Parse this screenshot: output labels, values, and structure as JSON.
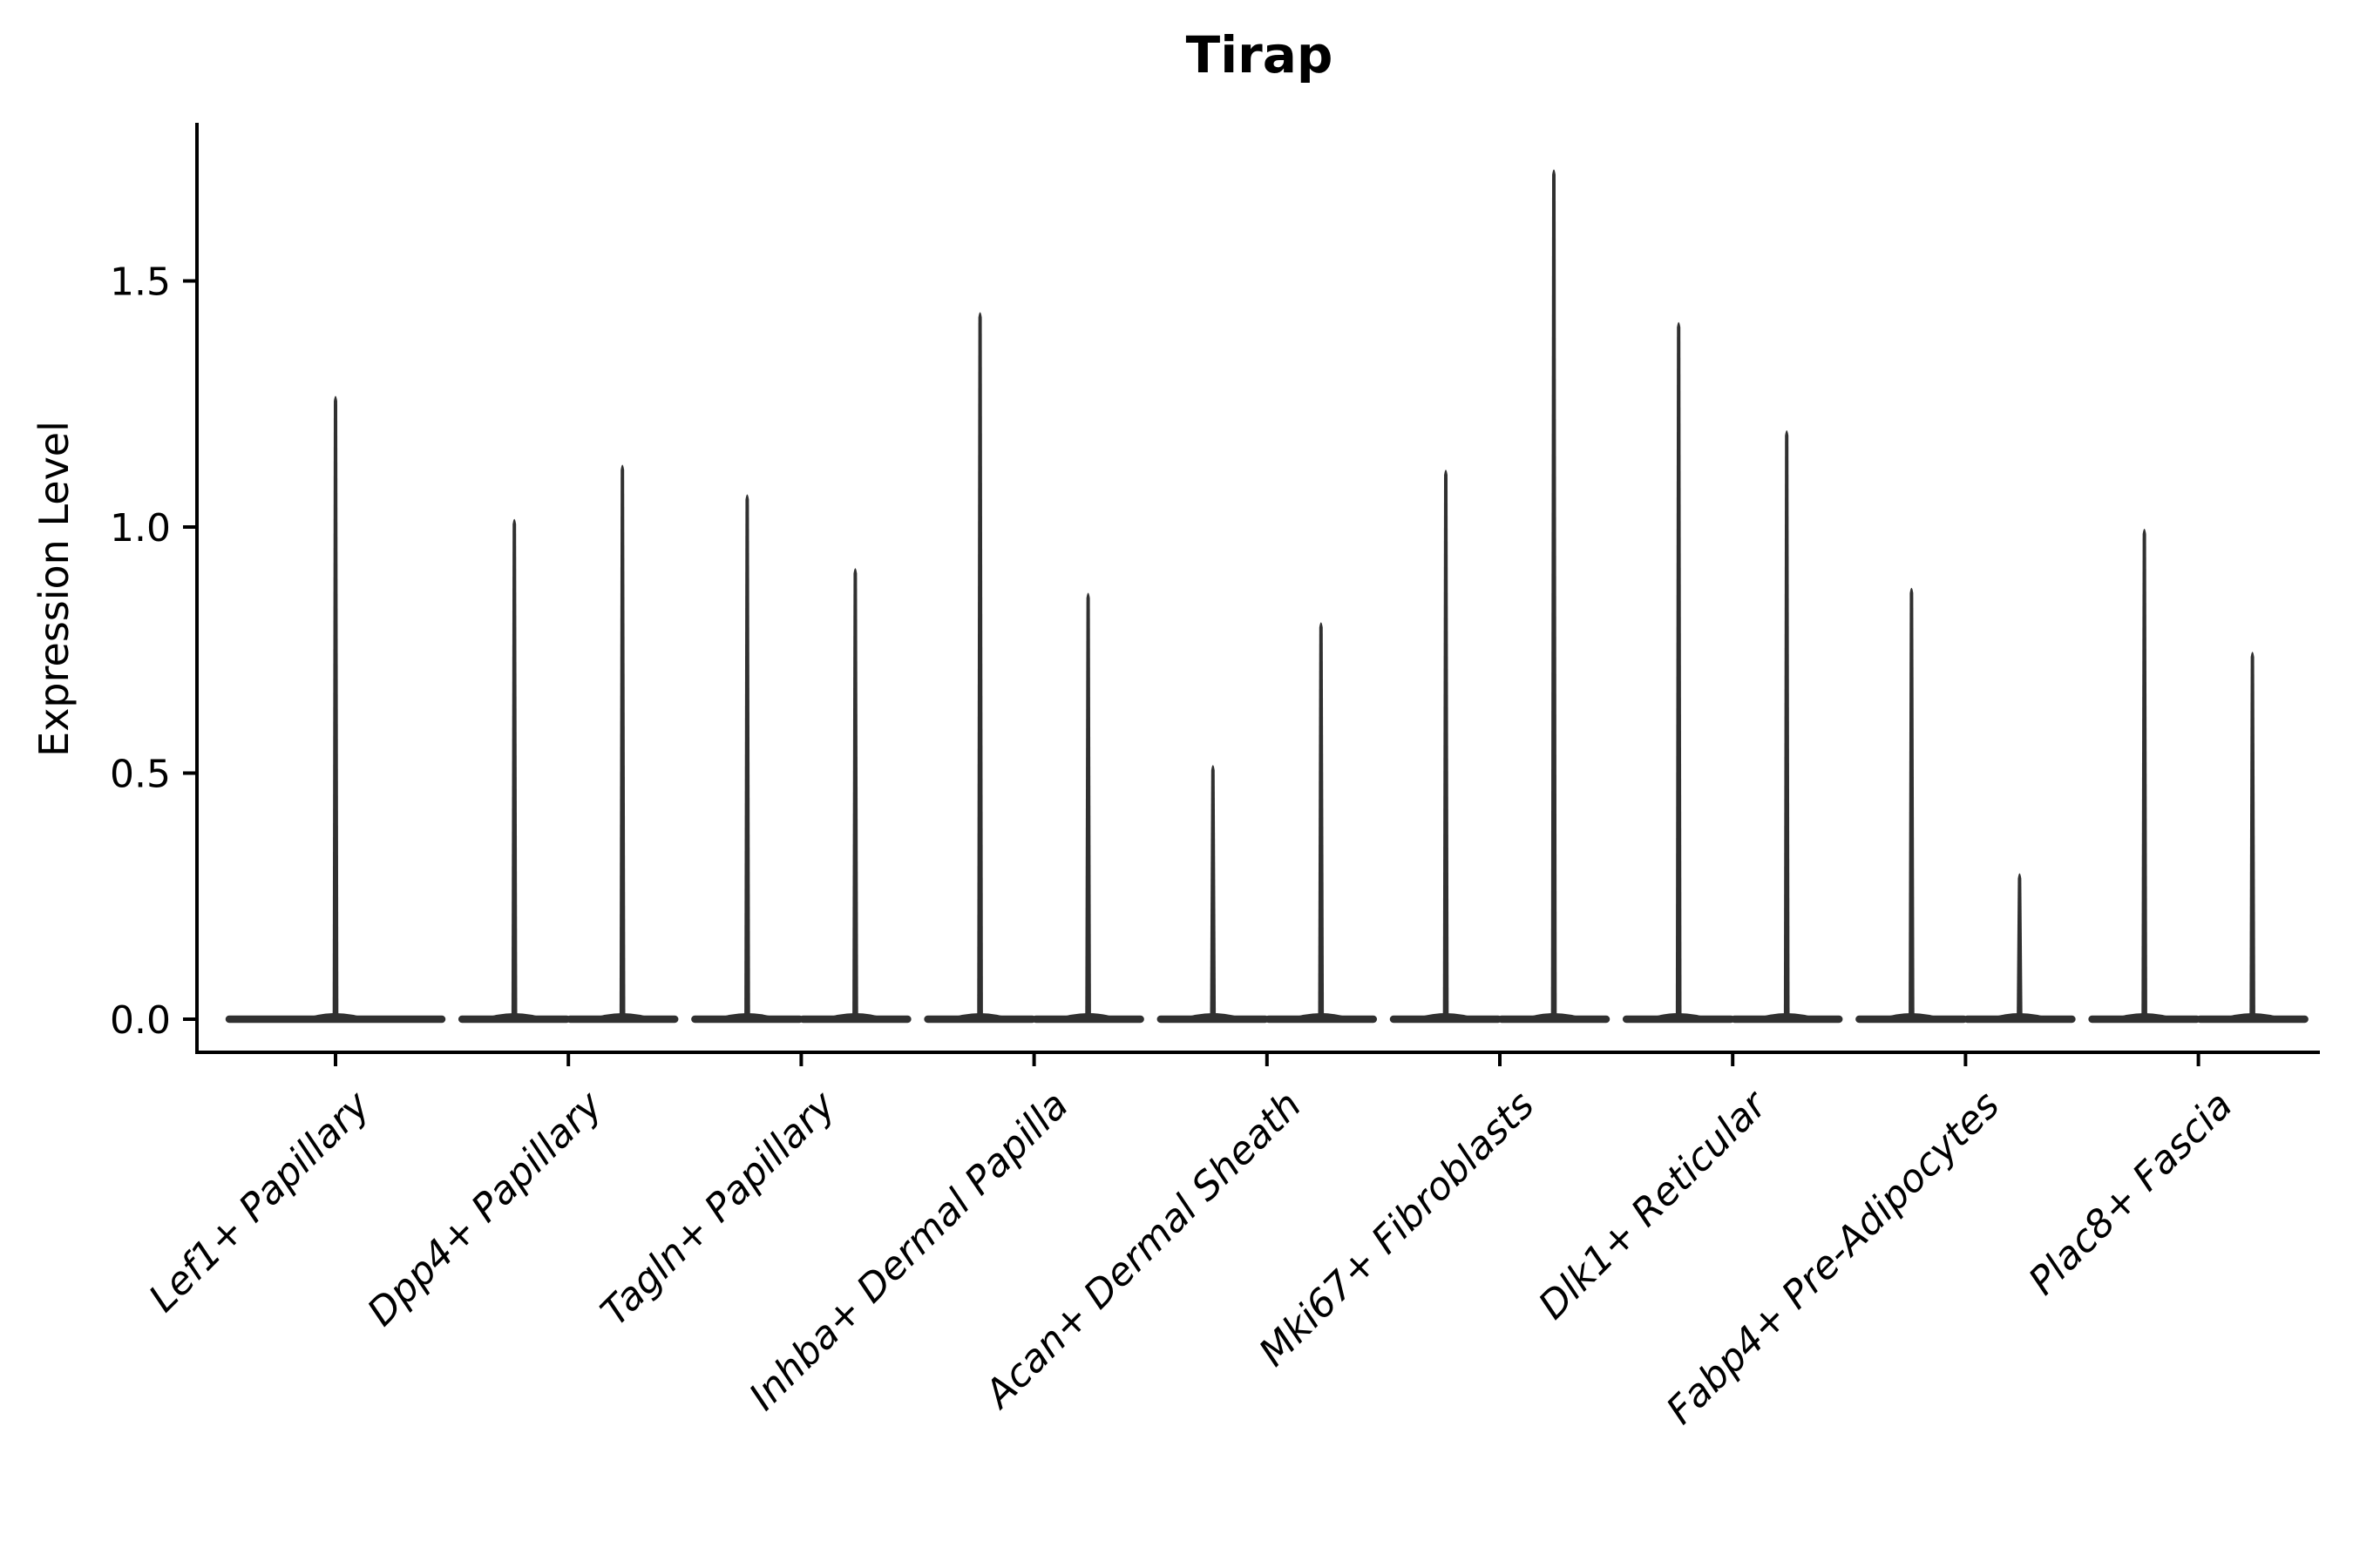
{
  "colors": {
    "background": "#ffffff",
    "violin": "#303030",
    "axis": "#000000",
    "text": "#000000"
  },
  "chart_data": {
    "type": "violin",
    "title": "Tirap",
    "xlabel": "",
    "ylabel": "Expression Level",
    "ylim": [
      -0.06,
      1.85
    ],
    "yticks": [
      0.0,
      0.5,
      1.0,
      1.5
    ],
    "ytick_labels": [
      "0.0",
      "0.5",
      "1.0",
      "1.5"
    ],
    "grid": false,
    "legend": "none",
    "x_tick_label_style": "italic, rotated 45 degrees, right-anchored",
    "violin_style": "collapsed spike violins: wide flat baseline at 0 expression with a thin vertical spike up to the maximum expression value",
    "categories": [
      "Lef1+ Papillary",
      "Dpp4+ Papillary",
      "Tagln+ Papillary",
      "Inhba+ Dermal Papilla",
      "Acan+ Dermal Sheath",
      "Mki67+ Fibroblasts",
      "Dlk1+ Reticular",
      "Fabp4+ Pre-Adipocytes",
      "Plac8+ Fascia"
    ],
    "series": [
      {
        "category": "Lef1+ Papillary",
        "violins": [
          {
            "position": "center",
            "max": 1.27
          }
        ]
      },
      {
        "category": "Dpp4+ Papillary",
        "violins": [
          {
            "position": "left",
            "max": 1.02
          },
          {
            "position": "right",
            "max": 1.13
          }
        ]
      },
      {
        "category": "Tagln+ Papillary",
        "violins": [
          {
            "position": "left",
            "max": 1.07
          },
          {
            "position": "right",
            "max": 0.92
          }
        ]
      },
      {
        "category": "Inhba+ Dermal Papilla",
        "violins": [
          {
            "position": "left",
            "max": 1.44
          },
          {
            "position": "right",
            "max": 0.87
          }
        ]
      },
      {
        "category": "Acan+ Dermal Sheath",
        "violins": [
          {
            "position": "left",
            "max": 0.52
          },
          {
            "position": "right",
            "max": 0.81
          }
        ]
      },
      {
        "category": "Mki67+ Fibroblasts",
        "violins": [
          {
            "position": "left",
            "max": 1.12
          },
          {
            "position": "right",
            "max": 1.73
          }
        ]
      },
      {
        "category": "Dlk1+ Reticular",
        "violins": [
          {
            "position": "left",
            "max": 1.42
          },
          {
            "position": "right",
            "max": 1.2
          }
        ]
      },
      {
        "category": "Fabp4+ Pre-Adipocytes",
        "violins": [
          {
            "position": "left",
            "max": 0.88
          },
          {
            "position": "right",
            "max": 0.3
          }
        ]
      },
      {
        "category": "Plac8+ Fascia",
        "violins": [
          {
            "position": "left",
            "max": 1.0
          },
          {
            "position": "right",
            "max": 0.75
          }
        ]
      }
    ]
  }
}
